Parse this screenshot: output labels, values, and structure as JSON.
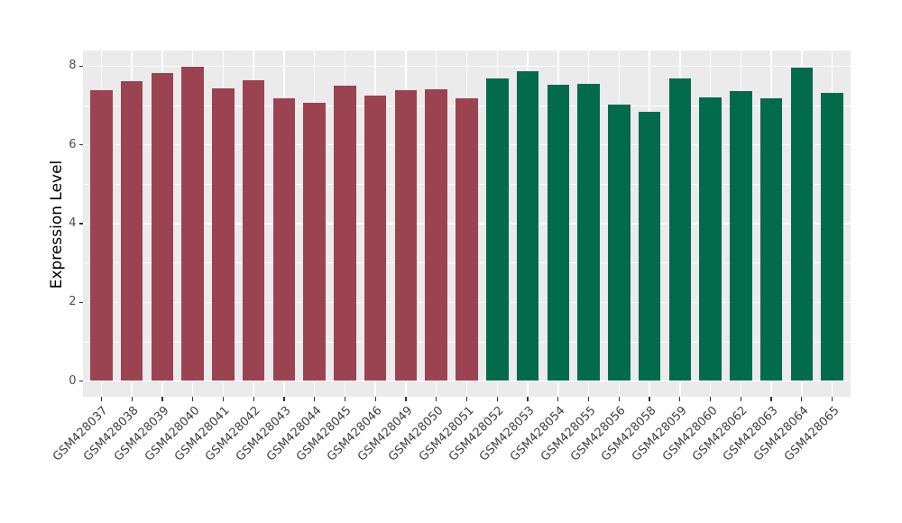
{
  "chart_data": {
    "type": "bar",
    "title": "",
    "xlabel": "",
    "ylabel": "Expression Level",
    "ylim": [
      0,
      8.4
    ],
    "yticks": [
      0,
      2,
      4,
      6,
      8
    ],
    "grid": "major-and-minor, white on gray panel",
    "legend_position": "none",
    "categories": [
      "GSM428037",
      "GSM428038",
      "GSM428039",
      "GSM428040",
      "GSM428041",
      "GSM428042",
      "GSM428043",
      "GSM428044",
      "GSM428045",
      "GSM428046",
      "GSM428049",
      "GSM428050",
      "GSM428051",
      "GSM428052",
      "GSM428053",
      "GSM428054",
      "GSM428055",
      "GSM428056",
      "GSM428058",
      "GSM428059",
      "GSM428060",
      "GSM428062",
      "GSM428063",
      "GSM428064",
      "GSM428065"
    ],
    "values": [
      7.39,
      7.61,
      7.82,
      7.98,
      7.43,
      7.63,
      7.18,
      7.06,
      7.51,
      7.24,
      7.38,
      7.41,
      7.19,
      7.69,
      7.88,
      7.53,
      7.56,
      7.02,
      6.83,
      7.68,
      7.21,
      7.37,
      7.19,
      7.96,
      7.33
    ],
    "groups": [
      "A",
      "A",
      "A",
      "A",
      "A",
      "A",
      "A",
      "A",
      "A",
      "A",
      "A",
      "A",
      "A",
      "B",
      "B",
      "B",
      "B",
      "B",
      "B",
      "B",
      "B",
      "B",
      "B",
      "B",
      "B"
    ],
    "palette": {
      "A": "#9C4351",
      "B": "#026B4B"
    },
    "theme": {
      "panel_bg": "#EBEBEB",
      "grid_color": "#FFFFFF",
      "tick_color": "#333333",
      "axis_text_color": "#4D4D4D",
      "axis_title_color": "#000000",
      "outer_bg": "#FFFFFF"
    }
  }
}
